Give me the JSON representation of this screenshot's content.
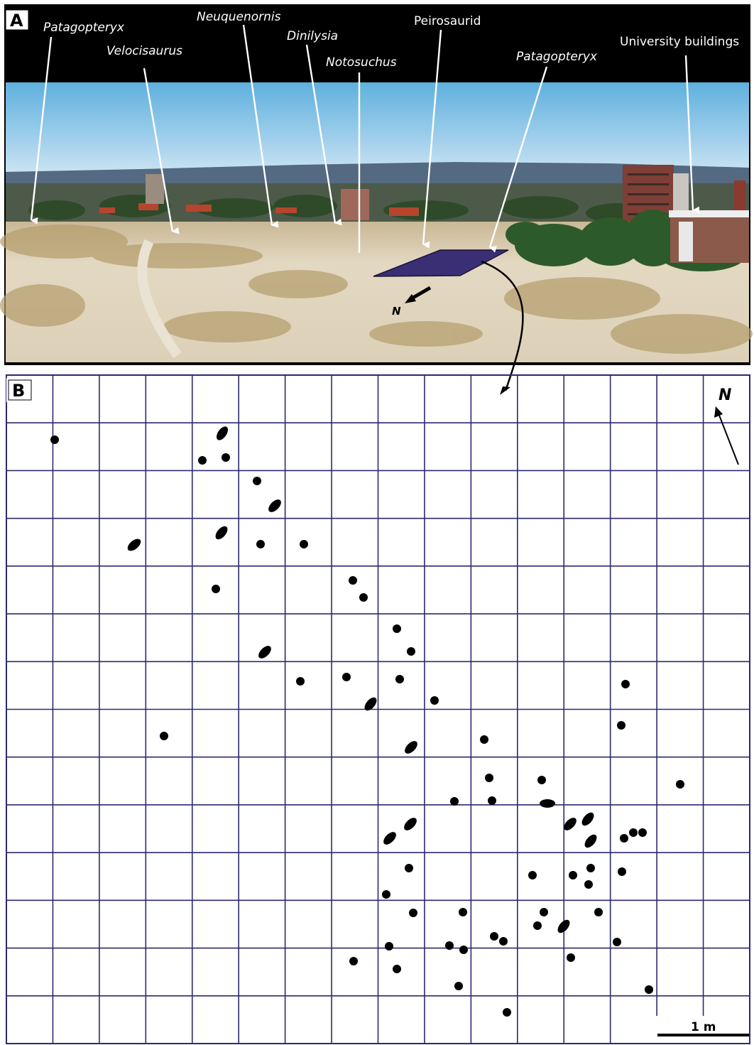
{
  "panelA": {
    "letter": "A",
    "labels": [
      {
        "id": "patagopteryx-left",
        "text": "Patagopteryx",
        "italic": true
      },
      {
        "id": "velocisaurus",
        "text": "Velocisaurus",
        "italic": true
      },
      {
        "id": "neuquenornis",
        "text": "Neuquenornis",
        "italic": true
      },
      {
        "id": "dinilysia",
        "text": "Dinilysia",
        "italic": true
      },
      {
        "id": "notosuchus",
        "text": "Notosuchus",
        "italic": true
      },
      {
        "id": "peirosaurid",
        "text": "Peirosaurid",
        "italic": false
      },
      {
        "id": "patagopteryx-right",
        "text": "Patagopteryx",
        "italic": true
      },
      {
        "id": "university-buildings",
        "text": "University buildings",
        "italic": false
      }
    ],
    "north_label": "N",
    "colors": {
      "band": "#000000",
      "sky": "#a8d2ea",
      "ground": "#e4d9c3",
      "quadrat": "#3a2f74"
    }
  },
  "panelB": {
    "letter": "B",
    "north_label": "N",
    "scale_label": "1 m",
    "grid": {
      "columns": 16,
      "rows": 14,
      "line_color": "#2c2a6e"
    },
    "specimens_total": 69
  }
}
